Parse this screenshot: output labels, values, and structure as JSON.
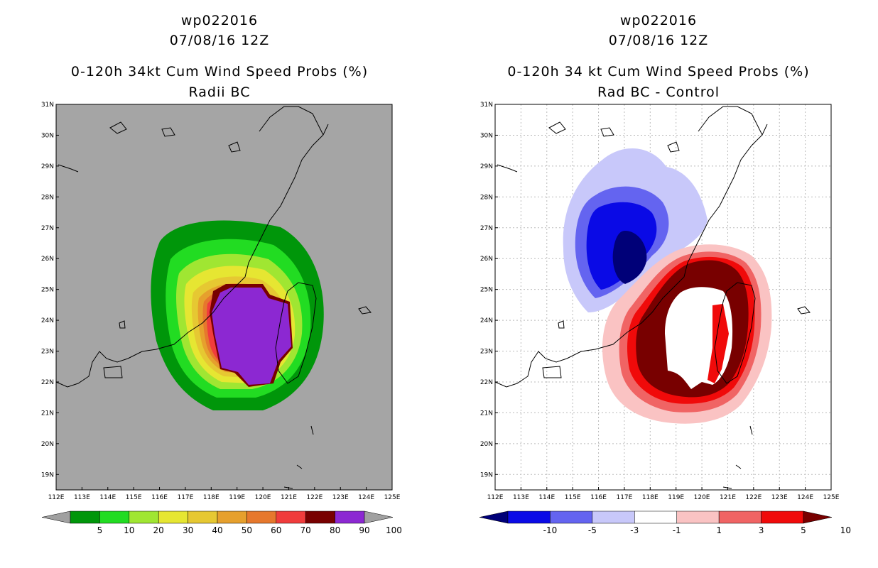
{
  "left_panel": {
    "storm_id": "wp022016",
    "datetime": "07/08/16 12Z",
    "title": "0-120h 34kt Cum Wind Speed Probs (%)",
    "subtitle": "Radii BC",
    "colorbar": {
      "labels": [
        "5",
        "10",
        "20",
        "30",
        "40",
        "50",
        "60",
        "70",
        "80",
        "90",
        "100"
      ],
      "colors": [
        "#a0a0a0",
        "#00960a",
        "#22dc22",
        "#a0e632",
        "#e6e632",
        "#e6c832",
        "#e6a02d",
        "#e6782d",
        "#f03c3c",
        "#780000",
        "#8c28d2",
        "#a0a0a0"
      ]
    },
    "background_color": "#a5a5a5"
  },
  "right_panel": {
    "storm_id": "wp022016",
    "datetime": "07/08/16 12Z",
    "title": "0-120h 34 kt Cum Wind Speed Probs (%)",
    "subtitle": "Rad BC - Control",
    "colorbar": {
      "labels": [
        "-10",
        "-5",
        "-3",
        "-1",
        "1",
        "3",
        "5",
        "10"
      ],
      "colors": [
        "#000078",
        "#0a0ae6",
        "#6464f0",
        "#c8c8fa",
        "#ffffff",
        "#fac3c3",
        "#f06464",
        "#f00a0a",
        "#780000"
      ]
    },
    "background_color": "#ffffff"
  },
  "axes": {
    "lon_labels": [
      "112E",
      "113E",
      "114E",
      "115E",
      "116E",
      "117E",
      "118E",
      "119E",
      "120E",
      "121E",
      "122E",
      "123E",
      "124E",
      "125E"
    ],
    "lat_labels": [
      "19N",
      "20N",
      "21N",
      "22N",
      "23N",
      "24N",
      "25N",
      "26N",
      "27N",
      "28N",
      "29N",
      "30N",
      "31N"
    ]
  }
}
